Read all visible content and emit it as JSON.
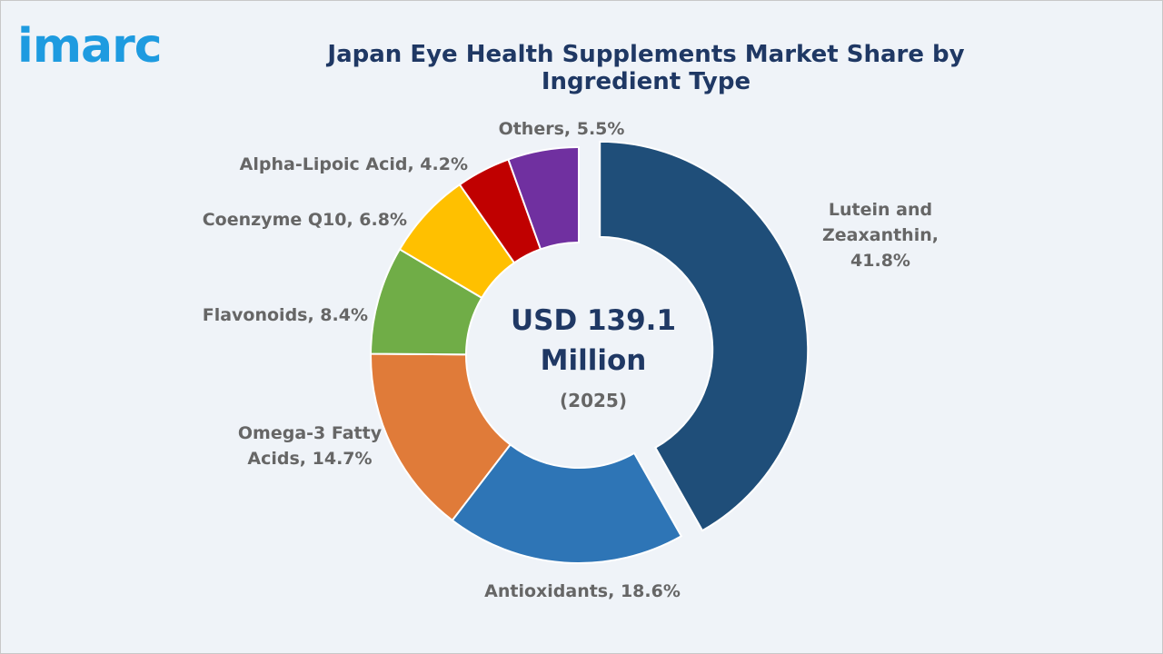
{
  "logo": "imarc",
  "chart_data": {
    "type": "pie",
    "donut": true,
    "title": "Japan Eye Health Supplements Market Share by Ingredient Type",
    "center_text": "USD 139.1 Million",
    "center_subtext": "(2025)",
    "values": [
      41.8,
      18.6,
      14.7,
      8.4,
      6.8,
      4.2,
      5.5
    ],
    "value_labels": [
      "Lutein and Zeaxanthin, 41.8%",
      "Antioxidants, 18.6%",
      "Omega-3 Fatty Acids, 14.7%",
      "Flavonoids, 8.4%",
      "Coenzyme Q10, 6.8%",
      "Alpha-Lipoic Acid, 4.2%",
      "Others, 5.5%"
    ],
    "colors": [
      "#1f4e79",
      "#2e75b6",
      "#e07b39",
      "#70ad47",
      "#ffc000",
      "#c00000",
      "#7030a0"
    ],
    "exploded": 0
  }
}
